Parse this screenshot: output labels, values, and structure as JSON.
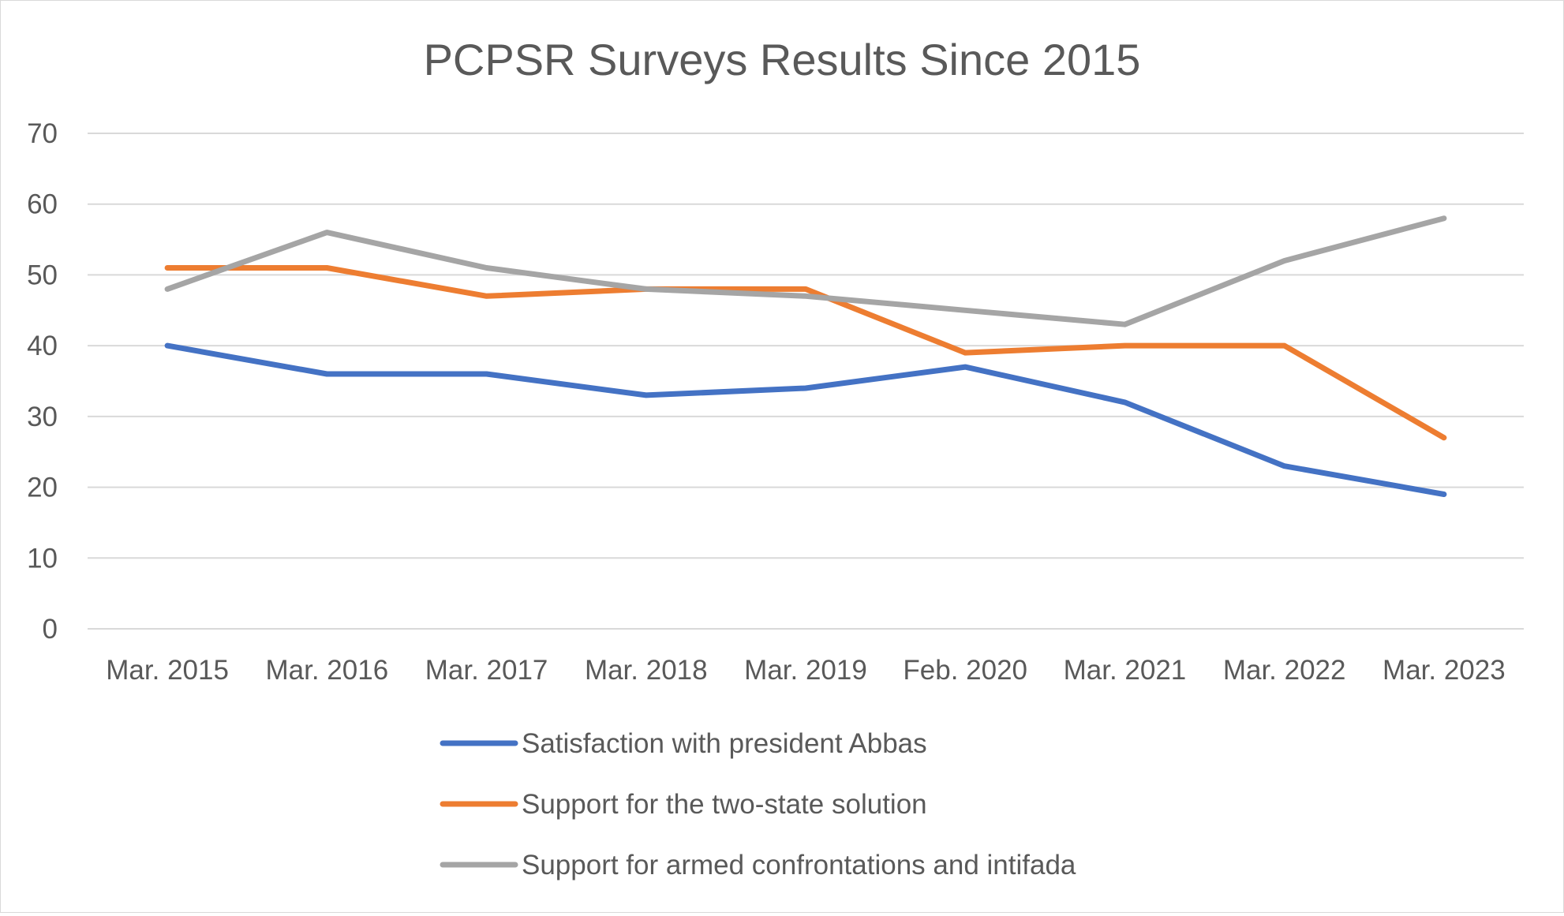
{
  "chart_data": {
    "type": "line",
    "title": "PCPSR Surveys Results Since 2015",
    "xlabel": "",
    "ylabel": "",
    "categories": [
      "Mar. 2015",
      "Mar. 2016",
      "Mar. 2017",
      "Mar. 2018",
      "Mar. 2019",
      "Feb. 2020",
      "Mar. 2021",
      "Mar. 2022",
      "Mar. 2023"
    ],
    "ylim": [
      0,
      70
    ],
    "yticks": [
      "0",
      "10",
      "20",
      "30",
      "40",
      "50",
      "60",
      "70"
    ],
    "grid": true,
    "legend_position": "bottom",
    "series": [
      {
        "name": "Satisfaction with president Abbas",
        "color": "#4472c4",
        "values": [
          40,
          36,
          36,
          33,
          34,
          37,
          32,
          23,
          19
        ]
      },
      {
        "name": "Support for the two-state solution",
        "color": "#ed7d31",
        "values": [
          51,
          51,
          47,
          48,
          48,
          39,
          40,
          40,
          27
        ]
      },
      {
        "name": "Support for armed confrontations and intifada",
        "color": "#a5a5a5",
        "values": [
          48,
          56,
          51,
          48,
          47,
          45,
          43,
          52,
          58
        ]
      }
    ]
  }
}
